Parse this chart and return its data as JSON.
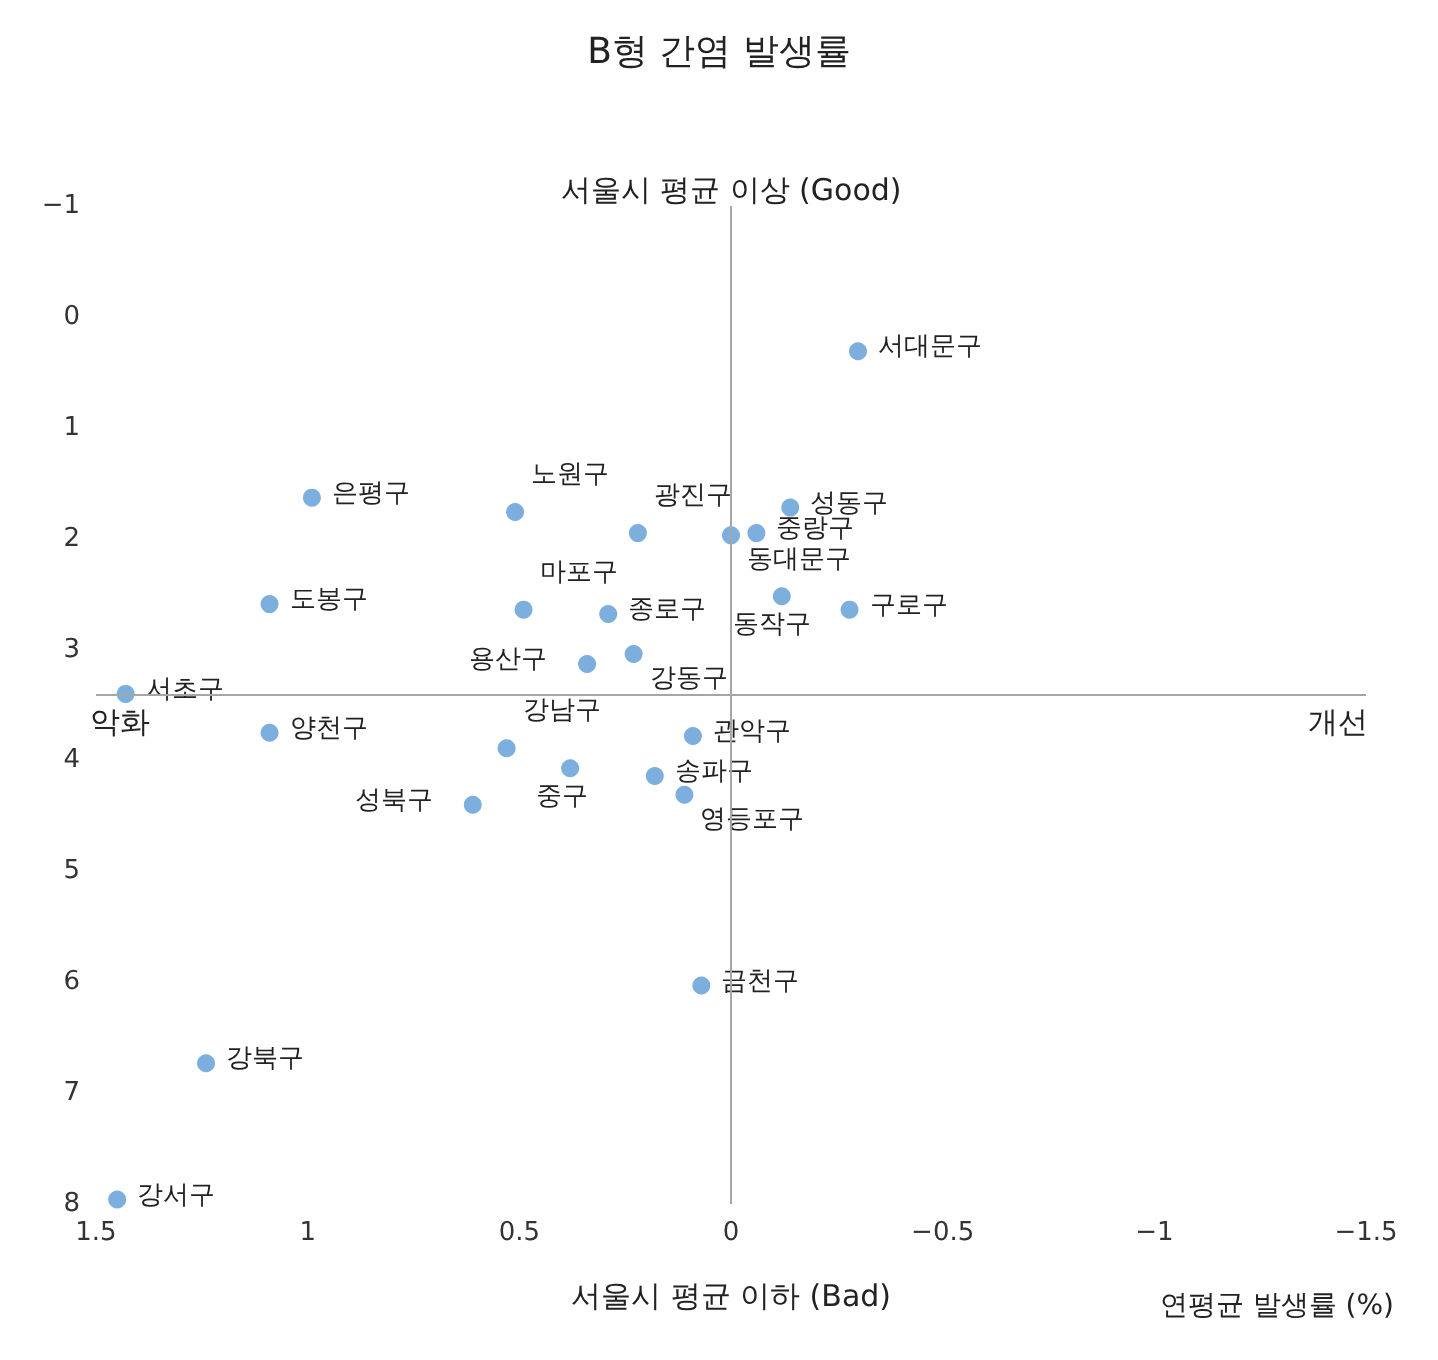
{
  "chart_data": {
    "type": "scatter",
    "title": "B형 간염 발생률",
    "xlabel": "연평균 발생률 (%)",
    "xlim": [
      1.5,
      -1.5
    ],
    "xticks": [
      1.5,
      1,
      0.5,
      0,
      -0.5,
      -1,
      -1.5
    ],
    "ylim": [
      8,
      -1
    ],
    "yticks": [
      -1,
      0,
      1,
      2,
      3,
      4,
      5,
      6,
      7,
      8
    ],
    "marker": "circle",
    "series": [
      {
        "color": "#5b9bd5",
        "x": [
          -0.3,
          0.0,
          -0.14,
          -0.06,
          -0.12,
          -0.28,
          0.22,
          0.51,
          0.99,
          1.09,
          0.49,
          0.29,
          0.23,
          0.34,
          1.43,
          1.09,
          0.53,
          0.38,
          0.61,
          0.09,
          0.18,
          0.11,
          0.07,
          1.24,
          1.45
        ],
        "values": [
          0.31,
          1.97,
          1.72,
          1.95,
          2.52,
          2.64,
          1.95,
          1.76,
          1.63,
          2.59,
          2.64,
          2.68,
          3.04,
          3.13,
          3.4,
          3.75,
          3.89,
          4.07,
          4.4,
          3.78,
          4.14,
          4.31,
          6.03,
          6.73,
          7.96
        ]
      }
    ],
    "ref_lines": [
      {
        "axis": "x",
        "value": 0,
        "color": "#a6a6a6"
      },
      {
        "axis": "y",
        "value": 3.4,
        "color": "#a6a6a6"
      }
    ],
    "annotations": [
      "서울시 평균 이상 (Good)",
      "서울시 평균 이하 (Bad)",
      {
        "text": "악화",
        "x": 1.5,
        "y": 3.4
      },
      {
        "text": "개선",
        "x": -1.5,
        "y": 3.4
      },
      {
        "text": "서대문구",
        "x": -0.3,
        "y": 0.31
      },
      {
        "text": "동대문구",
        "x": 0.0,
        "y": 1.97
      },
      {
        "text": "성동구",
        "x": -0.14,
        "y": 1.72
      },
      {
        "text": "중랑구",
        "x": -0.06,
        "y": 1.95
      },
      {
        "text": "동작구",
        "x": -0.12,
        "y": 2.52
      },
      {
        "text": "구로구",
        "x": -0.28,
        "y": 2.64
      },
      {
        "text": "광진구",
        "x": 0.22,
        "y": 1.95
      },
      {
        "text": "노원구",
        "x": 0.51,
        "y": 1.76
      },
      {
        "text": "은평구",
        "x": 0.99,
        "y": 1.63
      },
      {
        "text": "도봉구",
        "x": 1.09,
        "y": 2.59
      },
      {
        "text": "마포구",
        "x": 0.49,
        "y": 2.64
      },
      {
        "text": "종로구",
        "x": 0.29,
        "y": 2.68
      },
      {
        "text": "강동구",
        "x": 0.23,
        "y": 3.04
      },
      {
        "text": "용산구",
        "x": 0.34,
        "y": 3.13
      },
      {
        "text": "서초구",
        "x": 1.43,
        "y": 3.4
      },
      {
        "text": "양천구",
        "x": 1.09,
        "y": 3.75
      },
      {
        "text": "강남구",
        "x": 0.53,
        "y": 3.89
      },
      {
        "text": "중구",
        "x": 0.38,
        "y": 4.07
      },
      {
        "text": "성북구",
        "x": 0.61,
        "y": 4.4
      },
      {
        "text": "관악구",
        "x": 0.09,
        "y": 3.78
      },
      {
        "text": "송파구",
        "x": 0.18,
        "y": 4.14
      },
      {
        "text": "영등포구",
        "x": 0.11,
        "y": 4.31
      },
      {
        "text": "금천구",
        "x": 0.07,
        "y": 6.03
      },
      {
        "text": "강북구",
        "x": 1.24,
        "y": 6.73
      },
      {
        "text": "강서구",
        "x": 1.45,
        "y": 7.96
      }
    ]
  }
}
